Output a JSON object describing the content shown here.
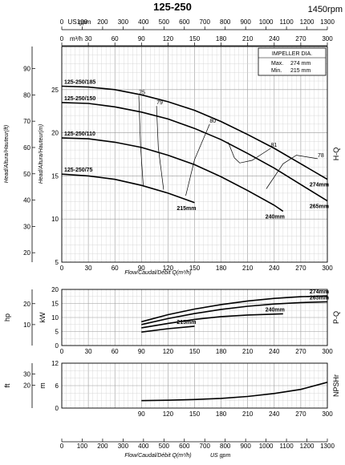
{
  "header": {
    "model": "125-250",
    "speed": "1450rpm"
  },
  "impeller_box": {
    "title": "IMPELLER DIA.",
    "max_label": "Max.",
    "max_value": "274 mm",
    "min_label": "Min.",
    "min_value": "215 mm"
  },
  "chart_data": [
    {
      "id": "head",
      "type": "line",
      "side_label": "H-Q",
      "xlabel": "Flow/Caudal/Débit Q(m³/h)",
      "ylabel_m": "Head/Altura/Hauteur(m)",
      "ylabel_ft": "Head/Altura/Hauteur(ft)",
      "xlim": [
        0,
        300
      ],
      "ylim": [
        5,
        30
      ],
      "ylim_ft": [
        16.4,
        98.4
      ],
      "x_ticks": [
        0,
        30,
        60,
        90,
        120,
        150,
        180,
        210,
        240,
        270,
        300
      ],
      "y_ticks": [
        5,
        10,
        15,
        20,
        25
      ],
      "y_ticks_ft": [
        20,
        30,
        40,
        50,
        60,
        70,
        80,
        90
      ],
      "top_axis_m3h": {
        "label": "m³/h",
        "ticks": [
          0,
          30,
          60,
          90,
          120,
          150,
          180,
          210,
          240,
          270,
          300
        ]
      },
      "top_axis_usgpm": {
        "label": "US gpm",
        "ticks": [
          0,
          100,
          200,
          300,
          400,
          500,
          600,
          700,
          800,
          900,
          1000,
          1100,
          1200,
          1300
        ]
      },
      "series": [
        {
          "name": "125-250/185",
          "end_label": "274mm",
          "x": [
            0,
            30,
            60,
            90,
            120,
            150,
            180,
            210,
            240,
            270,
            300
          ],
          "y": [
            25.4,
            25.3,
            25.0,
            24.4,
            23.6,
            22.6,
            21.3,
            19.8,
            18.2,
            16.4,
            14.6
          ]
        },
        {
          "name": "125-250/150",
          "end_label": "265mm",
          "x": [
            0,
            30,
            60,
            90,
            120,
            150,
            180,
            210,
            240,
            270,
            300
          ],
          "y": [
            23.5,
            23.4,
            23.0,
            22.4,
            21.6,
            20.5,
            19.2,
            17.6,
            15.9,
            14.0,
            12.1
          ]
        },
        {
          "name": "125-250/110",
          "end_label": "240mm",
          "x": [
            0,
            30,
            60,
            90,
            120,
            150,
            180,
            210,
            240,
            250
          ],
          "y": [
            19.4,
            19.3,
            18.9,
            18.3,
            17.4,
            16.3,
            14.9,
            13.3,
            11.6,
            10.9
          ]
        },
        {
          "name": "125-250/75",
          "end_label": "215mm",
          "x": [
            0,
            30,
            60,
            90,
            120,
            150
          ],
          "y": [
            15.2,
            15.0,
            14.6,
            13.9,
            13.0,
            11.9
          ]
        }
      ],
      "efficiency": [
        {
          "label": "75",
          "x": [
            92,
            89,
            87
          ],
          "y": [
            13.9,
            18.5,
            24.3
          ]
        },
        {
          "label": "79",
          "x": [
            115,
            109,
            107
          ],
          "y": [
            13.4,
            18.3,
            23.1
          ]
        },
        {
          "label": "80",
          "x": [
            140,
            150,
            167
          ],
          "y": [
            12.7,
            16.9,
            21.0
          ]
        },
        {
          "label": "81",
          "x": [
            188,
            195,
            201,
            215,
            236
          ],
          "y": [
            18.9,
            17.1,
            16.5,
            16.8,
            18.2
          ]
        },
        {
          "label": "78",
          "x": [
            231,
            250,
            265,
            289
          ],
          "y": [
            13.5,
            16.4,
            17.4,
            17.0
          ]
        }
      ]
    },
    {
      "id": "power",
      "type": "line",
      "side_label": "P-Q",
      "ylabel_kw": "kW",
      "ylabel_hp": "hp",
      "xlim": [
        0,
        300
      ],
      "ylim": [
        0,
        20
      ],
      "ylim_hp": [
        0,
        26.8
      ],
      "x_ticks": [
        0,
        30,
        60,
        90,
        120,
        150,
        180,
        210,
        240,
        270,
        300
      ],
      "y_ticks": [
        0,
        5,
        10,
        15,
        20
      ],
      "y_ticks_hp": [
        10,
        20
      ],
      "series": [
        {
          "name": "274mm",
          "x": [
            90,
            120,
            150,
            180,
            210,
            240,
            270,
            300
          ],
          "y": [
            8.5,
            11.0,
            13.0,
            14.6,
            15.9,
            16.8,
            17.4,
            17.7
          ]
        },
        {
          "name": "265mm",
          "x": [
            90,
            120,
            150,
            180,
            210,
            240,
            270,
            300
          ],
          "y": [
            7.5,
            9.6,
            11.4,
            12.9,
            14.0,
            14.8,
            15.3,
            15.6
          ]
        },
        {
          "name": "240mm",
          "x": [
            90,
            120,
            150,
            180,
            210,
            240,
            250
          ],
          "y": [
            6.3,
            7.9,
            9.3,
            10.3,
            10.9,
            11.2,
            11.3
          ]
        },
        {
          "name": "215mm",
          "x": [
            90,
            120,
            150
          ],
          "y": [
            4.8,
            6.0,
            6.9
          ]
        }
      ]
    },
    {
      "id": "npsh",
      "type": "line",
      "side_label": "NPSHr",
      "xlabel": "Flow/Caudal/Débit Q(m³/h)",
      "xlabel_gpm": "US gpm",
      "ylabel_m": "m",
      "ylabel_ft": "ft",
      "xlim": [
        0,
        300
      ],
      "ylim": [
        0,
        12
      ],
      "ylim_ft": [
        0,
        39.4
      ],
      "x_ticks": [
        90,
        120,
        150,
        180,
        210,
        240,
        270,
        300
      ],
      "y_ticks": [
        0,
        6,
        12
      ],
      "y_ticks_ft": [
        20,
        30
      ],
      "bottom_axis_usgpm": [
        0,
        100,
        200,
        300,
        400,
        500,
        600,
        700,
        800,
        900,
        1000,
        1100,
        1200,
        1300
      ],
      "series": [
        {
          "name": "NPSHr",
          "x": [
            90,
            120,
            150,
            180,
            210,
            240,
            270,
            300
          ],
          "y": [
            2.0,
            2.1,
            2.3,
            2.6,
            3.1,
            3.9,
            5.0,
            6.9
          ]
        }
      ]
    }
  ]
}
